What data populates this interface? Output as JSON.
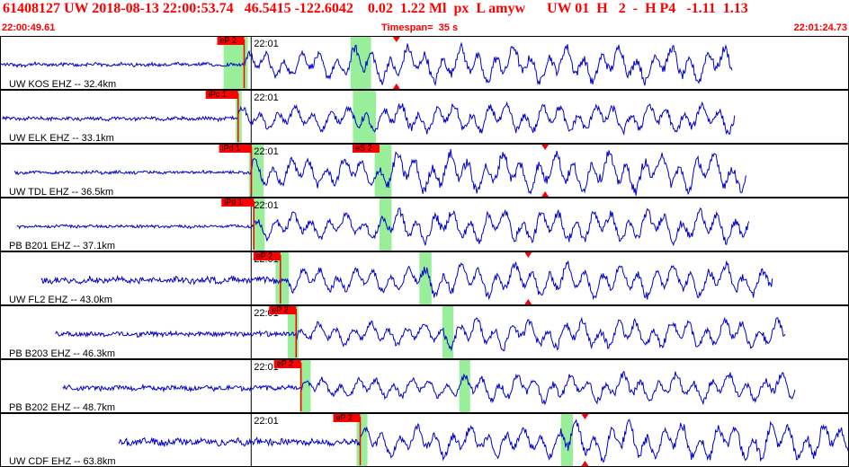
{
  "header": {
    "title": "61408127 UW 2018-08-13 22:00:53.74   46.5415 -122.6042    0.02  1.22 Ml  px  L amyw      UW 01  H   2  -  H P4   -1.11  1.13",
    "start_time": "22:00:49.61",
    "timespan": "Timespan=  35 s",
    "end_time": "22:01:24.73"
  },
  "colors": {
    "title": "#ff0000",
    "trace": "#0000cc",
    "pick_line": "#ff0000",
    "pick_flag": "#ff0000",
    "s_window": "#99ee99",
    "frame": "#000000"
  },
  "chart_data": {
    "type": "line",
    "x_unit": "s",
    "x_range": [
      0,
      35.12
    ],
    "minute_tick_label": "22:01",
    "minute_tick_x": 10.39,
    "traces": [
      {
        "label": "UW KOS EHZ -- 32.4km",
        "p_pick": {
          "label": "eP 2",
          "x": 10.1
        },
        "p_window": [
          9.25,
          10.25
        ],
        "s_window": [
          14.5,
          15.35
        ],
        "amp_marker_x": 16.4,
        "data_start": 0,
        "data_end": 30.3,
        "pre_amp": 0.06,
        "post_amp": 0.55
      },
      {
        "label": "UW ELK EHZ -- 33.1km",
        "p_pick": {
          "label": "iPc 1",
          "x": 9.85
        },
        "p_window": [
          9.75,
          10.0
        ],
        "s_window": [
          14.6,
          15.55
        ],
        "amp_marker_x": null,
        "data_start": 0.1,
        "data_end": 30.4,
        "pre_amp": 0.06,
        "post_amp": 0.45
      },
      {
        "label": "UW TDL EHZ -- 36.5km",
        "p_pick": {
          "label": "iPd 1",
          "x": 10.4
        },
        "p_window": [
          10.3,
          10.9
        ],
        "s_window": [
          15.5,
          16.2
        ],
        "s_pick": {
          "label": "eS 2",
          "x": 15.7
        },
        "amp_marker_x": 22.55,
        "data_start": 0.6,
        "data_end": 30.9,
        "pre_amp": 0.05,
        "post_amp": 0.6
      },
      {
        "label": "PB B201 EHZ -- 37.1km",
        "p_pick": {
          "label": "iPd 1",
          "x": 10.5
        },
        "p_window": [
          10.45,
          10.95
        ],
        "s_window": [
          15.7,
          16.2
        ],
        "amp_marker_x": null,
        "data_start": 0.7,
        "data_end": 31.0,
        "pre_amp": 0.05,
        "post_amp": 0.5
      },
      {
        "label": "UW FL2 EHZ -- 43.0km",
        "p_pick": {
          "label": "eP 2",
          "x": 11.6
        },
        "p_window": [
          11.4,
          11.95
        ],
        "s_window": [
          17.35,
          17.85
        ],
        "amp_marker_x": 21.85,
        "data_start": 1.7,
        "data_end": 31.95,
        "pre_amp": 0.1,
        "post_amp": 0.5
      },
      {
        "label": "PB B203 EHZ -- 46.3km",
        "p_pick": {
          "label": "eP 2",
          "x": 12.25
        },
        "p_window": [
          11.9,
          12.35
        ],
        "s_window": [
          18.3,
          18.75
        ],
        "amp_marker_x": null,
        "data_start": 2.3,
        "data_end": 32.5,
        "pre_amp": 0.08,
        "post_amp": 0.45
      },
      {
        "label": "PB B202 EHZ -- 48.7km",
        "p_pick": {
          "label": "eP 2",
          "x": 12.45
        },
        "p_window": [
          12.4,
          12.85
        ],
        "s_window": [
          19.0,
          19.45
        ],
        "amp_marker_x": null,
        "data_start": 2.6,
        "data_end": 32.9,
        "pre_amp": 0.08,
        "post_amp": 0.42
      },
      {
        "label": "UW CDF EHZ -- 63.8km",
        "p_pick": {
          "label": "eP 2",
          "x": 14.9
        },
        "p_window": [
          14.75,
          15.2
        ],
        "s_window": [
          23.2,
          23.7
        ],
        "s_pick": {
          "label": "",
          "x": 24.2
        },
        "amp_marker_x": 24.2,
        "data_start": 4.9,
        "data_end": 35.12,
        "pre_amp": 0.12,
        "post_amp": 0.6
      }
    ]
  }
}
